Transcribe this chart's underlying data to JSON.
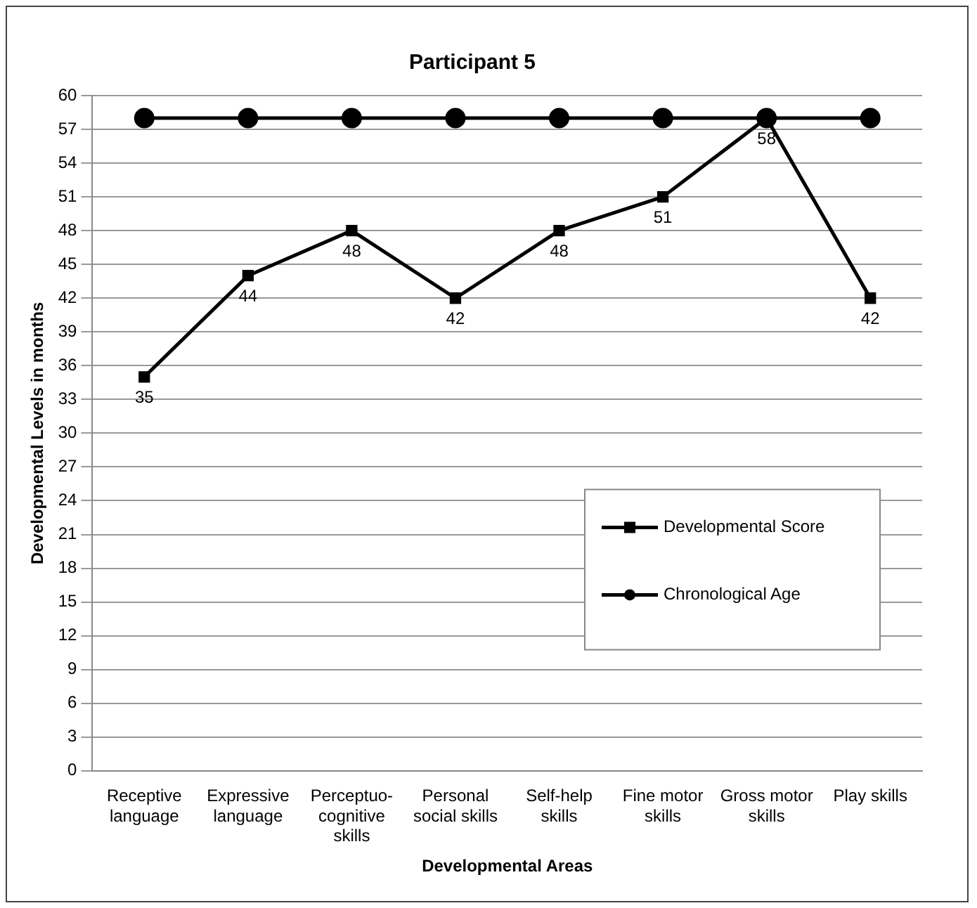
{
  "chart_data": {
    "type": "line",
    "title": "Participant 5",
    "xlabel": "Developmental Areas",
    "ylabel": "Developmental Levels in months",
    "categories": [
      "Receptive language",
      "Expressive language",
      "Perceptuo-cognitive skills",
      "Personal social skills",
      "Self-help skills",
      "Fine motor skills",
      "Gross motor skills",
      "Play skills"
    ],
    "series": [
      {
        "name": "Developmental Score",
        "color": "#000000",
        "marker": "square",
        "values": [
          35,
          44,
          48,
          42,
          48,
          51,
          58,
          42
        ],
        "value_labels": [
          "35",
          "44",
          "48",
          "42",
          "48",
          "51",
          "58",
          "42"
        ]
      },
      {
        "name": "Chronological Age",
        "color": "#000000",
        "marker": "circle",
        "values": [
          58,
          58,
          58,
          58,
          58,
          58,
          58,
          58
        ]
      }
    ],
    "ylim": [
      0,
      60
    ],
    "yticks": [
      0,
      3,
      6,
      9,
      12,
      15,
      18,
      21,
      24,
      27,
      30,
      33,
      36,
      39,
      42,
      45,
      48,
      51,
      54,
      57,
      60
    ],
    "grid": "y",
    "legend": "right",
    "line_style": "solid"
  }
}
